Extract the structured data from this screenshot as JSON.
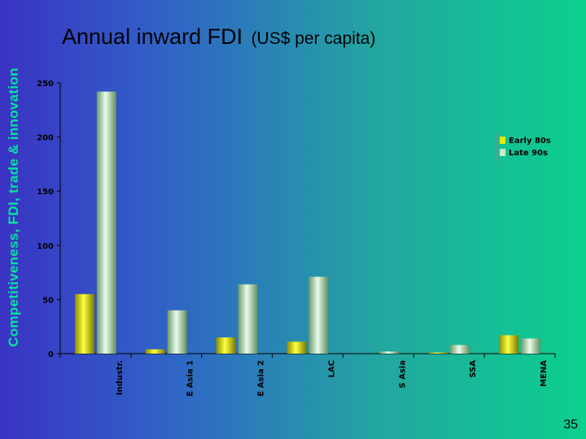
{
  "side_title": "Competitiveness, FDI, trade & innovation",
  "title": "Annual inward FDI",
  "title_unit": "(US$ per capita)",
  "page_number": "35",
  "colors": {
    "series_1": "#e8e800",
    "series_2": "#c8ecc8",
    "axis": "#000000",
    "side_title": "#00e59a"
  },
  "chart_data": {
    "type": "bar",
    "title": "Annual inward FDI (US$ per capita)",
    "xlabel": "",
    "ylabel": "",
    "categories": [
      "Industr.",
      "E Asia 1",
      "E Asia 2",
      "LAC",
      "S Asia",
      "SSA",
      "MENA"
    ],
    "series": [
      {
        "name": "Early 80s",
        "values": [
          55,
          4,
          15,
          11,
          0,
          1,
          17
        ]
      },
      {
        "name": "Late 90s",
        "values": [
          242,
          40,
          64,
          71,
          2,
          8,
          14
        ]
      }
    ],
    "ylim": [
      0,
      250
    ],
    "yticks": [
      "0",
      "50",
      "100",
      "150",
      "200",
      "250"
    ],
    "grid": false,
    "legend_position": "top-right"
  }
}
